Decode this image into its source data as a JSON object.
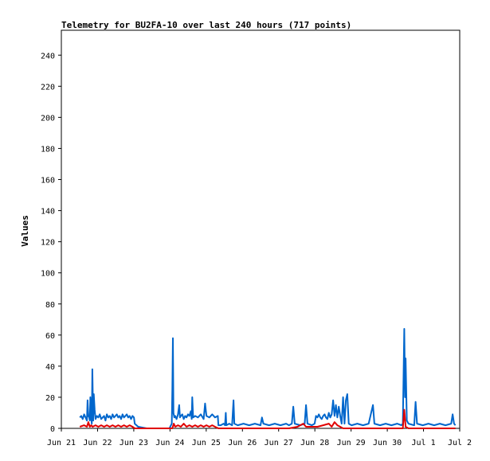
{
  "chart_data": {
    "type": "line",
    "title": "Telemetry for BU2FA-10 over last 240 hours (717 points)",
    "xlabel": "",
    "ylabel": "Values",
    "ylim": [
      0,
      256
    ],
    "y_ticks": [
      0,
      20,
      40,
      60,
      80,
      100,
      120,
      140,
      160,
      180,
      200,
      220,
      240
    ],
    "x_ticks": [
      "Jun 21",
      "Jun 22",
      "Jun 23",
      "Jun 24",
      "Jun 25",
      "Jun 26",
      "Jun 27",
      "Jun 28",
      "Jun 29",
      "Jun 30",
      "Jul 1",
      "Jul 2"
    ],
    "grid": false,
    "legend": "none",
    "series": [
      {
        "color": "#0066cc",
        "points": [
          [
            0.65,
            7
          ],
          [
            0.7,
            8
          ],
          [
            0.75,
            6
          ],
          [
            0.8,
            9
          ],
          [
            0.85,
            7
          ],
          [
            0.9,
            5
          ],
          [
            0.92,
            18
          ],
          [
            0.95,
            8
          ],
          [
            0.98,
            7
          ],
          [
            1.0,
            5
          ],
          [
            1.02,
            20
          ],
          [
            1.05,
            7
          ],
          [
            1.07,
            3
          ],
          [
            1.09,
            38
          ],
          [
            1.12,
            5
          ],
          [
            1.14,
            22
          ],
          [
            1.17,
            12
          ],
          [
            1.2,
            6
          ],
          [
            1.25,
            8
          ],
          [
            1.3,
            7
          ],
          [
            1.35,
            9
          ],
          [
            1.4,
            6
          ],
          [
            1.45,
            7
          ],
          [
            1.5,
            8
          ],
          [
            1.55,
            5
          ],
          [
            1.6,
            9
          ],
          [
            1.65,
            7
          ],
          [
            1.7,
            8
          ],
          [
            1.75,
            6
          ],
          [
            1.8,
            9
          ],
          [
            1.85,
            7
          ],
          [
            1.9,
            8
          ],
          [
            1.95,
            9
          ],
          [
            2.0,
            7
          ],
          [
            2.05,
            8
          ],
          [
            2.1,
            6
          ],
          [
            2.15,
            9
          ],
          [
            2.2,
            7
          ],
          [
            2.25,
            8
          ],
          [
            2.3,
            9
          ],
          [
            2.35,
            7
          ],
          [
            2.4,
            8
          ],
          [
            2.45,
            6
          ],
          [
            2.5,
            8
          ],
          [
            2.55,
            7
          ],
          [
            2.58,
            3
          ],
          [
            2.7,
            1
          ],
          [
            3.0,
            0
          ],
          [
            3.3,
            0
          ],
          [
            3.6,
            0
          ],
          [
            3.8,
            0
          ],
          [
            3.88,
            3
          ],
          [
            3.9,
            25
          ],
          [
            3.92,
            58
          ],
          [
            3.94,
            10
          ],
          [
            3.97,
            7
          ],
          [
            4.0,
            8
          ],
          [
            4.05,
            6
          ],
          [
            4.1,
            9
          ],
          [
            4.14,
            15
          ],
          [
            4.17,
            7
          ],
          [
            4.2,
            8
          ],
          [
            4.25,
            9
          ],
          [
            4.3,
            6
          ],
          [
            4.35,
            8
          ],
          [
            4.4,
            7
          ],
          [
            4.45,
            9
          ],
          [
            4.5,
            8
          ],
          [
            4.55,
            11
          ],
          [
            4.58,
            6
          ],
          [
            4.6,
            20
          ],
          [
            4.63,
            7
          ],
          [
            4.7,
            8
          ],
          [
            4.8,
            7
          ],
          [
            4.9,
            9
          ],
          [
            5.0,
            6
          ],
          [
            5.05,
            16
          ],
          [
            5.1,
            8
          ],
          [
            5.2,
            7
          ],
          [
            5.3,
            9
          ],
          [
            5.4,
            7
          ],
          [
            5.5,
            8
          ],
          [
            5.52,
            2
          ],
          [
            5.6,
            2
          ],
          [
            5.7,
            3
          ],
          [
            5.75,
            2
          ],
          [
            5.78,
            10
          ],
          [
            5.8,
            2
          ],
          [
            5.9,
            3
          ],
          [
            6.0,
            2
          ],
          [
            6.05,
            18
          ],
          [
            6.08,
            3
          ],
          [
            6.2,
            2
          ],
          [
            6.4,
            3
          ],
          [
            6.6,
            2
          ],
          [
            6.8,
            3
          ],
          [
            7.0,
            2
          ],
          [
            7.05,
            7
          ],
          [
            7.1,
            3
          ],
          [
            7.3,
            2
          ],
          [
            7.5,
            3
          ],
          [
            7.7,
            2
          ],
          [
            7.9,
            3
          ],
          [
            8.0,
            2
          ],
          [
            8.1,
            3
          ],
          [
            8.15,
            14
          ],
          [
            8.2,
            3
          ],
          [
            8.4,
            2
          ],
          [
            8.55,
            3
          ],
          [
            8.6,
            15
          ],
          [
            8.65,
            3
          ],
          [
            8.8,
            2
          ],
          [
            8.9,
            3
          ],
          [
            8.95,
            8
          ],
          [
            9.0,
            7
          ],
          [
            9.05,
            9
          ],
          [
            9.1,
            7
          ],
          [
            9.15,
            6
          ],
          [
            9.2,
            8
          ],
          [
            9.25,
            9
          ],
          [
            9.3,
            7
          ],
          [
            9.35,
            6
          ],
          [
            9.4,
            10
          ],
          [
            9.45,
            7
          ],
          [
            9.5,
            9
          ],
          [
            9.55,
            18
          ],
          [
            9.6,
            8
          ],
          [
            9.65,
            15
          ],
          [
            9.7,
            7
          ],
          [
            9.75,
            14
          ],
          [
            9.8,
            8
          ],
          [
            9.85,
            3
          ],
          [
            9.9,
            20
          ],
          [
            9.95,
            3
          ],
          [
            10.0,
            18
          ],
          [
            10.05,
            22
          ],
          [
            10.1,
            3
          ],
          [
            10.2,
            2
          ],
          [
            10.4,
            3
          ],
          [
            10.6,
            2
          ],
          [
            10.8,
            3
          ],
          [
            10.95,
            15
          ],
          [
            11.0,
            3
          ],
          [
            11.2,
            2
          ],
          [
            11.4,
            3
          ],
          [
            11.6,
            2
          ],
          [
            11.8,
            3
          ],
          [
            11.95,
            2
          ],
          [
            12.0,
            3
          ],
          [
            12.05,
            64
          ],
          [
            12.08,
            20
          ],
          [
            12.1,
            45
          ],
          [
            12.14,
            5
          ],
          [
            12.2,
            3
          ],
          [
            12.4,
            2
          ],
          [
            12.45,
            17
          ],
          [
            12.5,
            3
          ],
          [
            12.7,
            2
          ],
          [
            12.9,
            3
          ],
          [
            13.1,
            2
          ],
          [
            13.3,
            3
          ],
          [
            13.5,
            2
          ],
          [
            13.7,
            3
          ],
          [
            13.75,
            9
          ],
          [
            13.8,
            3
          ],
          [
            13.85,
            2
          ]
        ]
      },
      {
        "color": "#e00000",
        "points": [
          [
            0.65,
            1
          ],
          [
            0.8,
            2
          ],
          [
            0.9,
            1
          ],
          [
            0.95,
            4
          ],
          [
            1.0,
            1
          ],
          [
            1.05,
            2
          ],
          [
            1.1,
            1
          ],
          [
            1.2,
            2
          ],
          [
            1.3,
            1
          ],
          [
            1.4,
            2
          ],
          [
            1.5,
            1
          ],
          [
            1.6,
            2
          ],
          [
            1.7,
            1
          ],
          [
            1.8,
            2
          ],
          [
            1.9,
            1
          ],
          [
            2.0,
            2
          ],
          [
            2.1,
            1
          ],
          [
            2.2,
            2
          ],
          [
            2.3,
            1
          ],
          [
            2.4,
            2
          ],
          [
            2.5,
            1
          ],
          [
            2.58,
            0
          ],
          [
            3.9,
            0
          ],
          [
            3.95,
            3
          ],
          [
            4.0,
            1
          ],
          [
            4.1,
            2
          ],
          [
            4.2,
            1
          ],
          [
            4.3,
            3
          ],
          [
            4.4,
            1
          ],
          [
            4.5,
            2
          ],
          [
            4.6,
            1
          ],
          [
            4.7,
            2
          ],
          [
            4.8,
            1
          ],
          [
            4.9,
            2
          ],
          [
            5.0,
            1
          ],
          [
            5.1,
            2
          ],
          [
            5.2,
            1
          ],
          [
            5.3,
            2
          ],
          [
            5.4,
            1
          ],
          [
            5.52,
            0
          ],
          [
            6.0,
            0
          ],
          [
            8.0,
            0
          ],
          [
            8.3,
            1
          ],
          [
            8.5,
            3
          ],
          [
            8.6,
            1
          ],
          [
            9.0,
            1
          ],
          [
            9.2,
            2
          ],
          [
            9.4,
            3
          ],
          [
            9.5,
            1
          ],
          [
            9.6,
            4
          ],
          [
            9.7,
            2
          ],
          [
            9.8,
            1
          ],
          [
            9.9,
            0
          ],
          [
            12.0,
            0
          ],
          [
            12.05,
            12
          ],
          [
            12.1,
            1
          ],
          [
            12.2,
            0
          ],
          [
            13.85,
            0
          ]
        ]
      }
    ]
  }
}
